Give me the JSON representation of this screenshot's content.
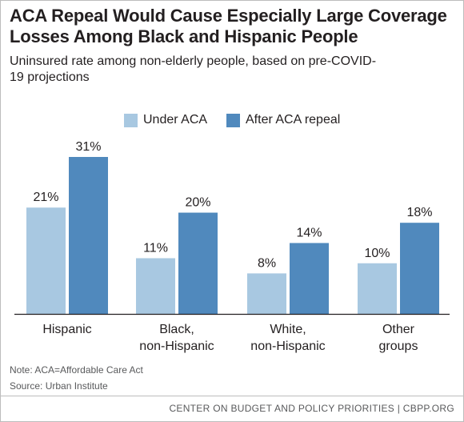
{
  "title": "ACA Repeal Would Cause Especially Large Coverage Losses Among Black and Hispanic People",
  "subtitle": "Uninsured rate among non-elderly people, based on pre-COVID-19 projections",
  "note": "Note: ACA=Affordable Care Act",
  "source": "Source: Urban Institute",
  "footer": "CENTER ON BUDGET AND POLICY PRIORITIES | CBPP.ORG",
  "colors": {
    "under_aca": "#a8c8e1",
    "after_repeal": "#5089bd",
    "axis": "#231f20"
  },
  "legend": [
    {
      "label": "Under ACA",
      "color": "#a8c8e1"
    },
    {
      "label": "After ACA repeal",
      "color": "#5089bd"
    }
  ],
  "chart_data": {
    "type": "bar",
    "categories": [
      [
        "Hispanic"
      ],
      [
        "Black,",
        "non-Hispanic"
      ],
      [
        "White,",
        "non-Hispanic"
      ],
      [
        "Other",
        "groups"
      ]
    ],
    "series": [
      {
        "name": "Under ACA",
        "values": [
          21,
          11,
          8,
          10
        ],
        "labels": [
          "21%",
          "11%",
          "8%",
          "10%"
        ]
      },
      {
        "name": "After ACA repeal",
        "values": [
          31,
          20,
          14,
          18
        ],
        "labels": [
          "31%",
          "20%",
          "14%",
          "18%"
        ]
      }
    ],
    "ylim": [
      0,
      31
    ],
    "xlabel": "",
    "ylabel": "",
    "grid": false,
    "legend_position": "top"
  }
}
